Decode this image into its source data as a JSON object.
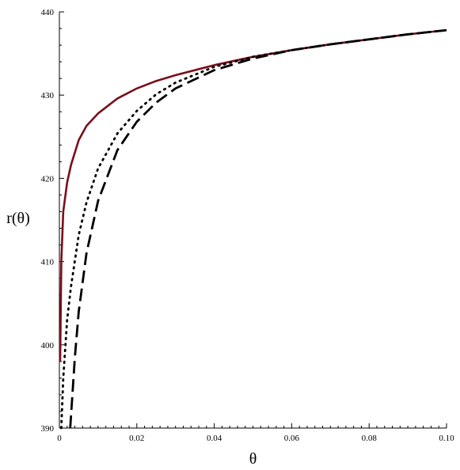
{
  "chart_data": {
    "type": "line",
    "title": "",
    "xlabel": "θ",
    "ylabel": "r(θ)",
    "xlim": [
      0,
      0.1
    ],
    "ylim": [
      390,
      440
    ],
    "x_ticks": [
      0,
      0.02,
      0.04,
      0.06,
      0.08,
      0.1
    ],
    "x_tick_labels": [
      "0",
      "0.02",
      "0.04",
      "0.06",
      "0.08",
      "0.10"
    ],
    "y_ticks": [
      390,
      400,
      410,
      420,
      430,
      440
    ],
    "y_tick_labels": [
      "390",
      "400",
      "410",
      "420",
      "430",
      "440"
    ],
    "grid": false,
    "legend": "none",
    "series": [
      {
        "style": "solid",
        "color": "#7a0f1a",
        "x": [
          0.0002,
          0.0005,
          0.001,
          0.002,
          0.003,
          0.005,
          0.007,
          0.01,
          0.015,
          0.02,
          0.025,
          0.03,
          0.04,
          0.05,
          0.06,
          0.07,
          0.08,
          0.09,
          0.1
        ],
        "y": [
          398,
          410,
          416,
          419.5,
          421.6,
          424.6,
          426.3,
          427.8,
          429.6,
          430.8,
          431.7,
          432.4,
          433.6,
          434.6,
          435.4,
          436.1,
          436.7,
          437.3,
          437.8
        ]
      },
      {
        "style": "dotted",
        "color": "#000000",
        "x": [
          0.0005,
          0.001,
          0.002,
          0.003,
          0.005,
          0.007,
          0.01,
          0.015,
          0.02,
          0.025,
          0.03,
          0.04,
          0.05,
          0.06,
          0.07,
          0.08,
          0.09,
          0.1
        ],
        "y": [
          390,
          396,
          403,
          407,
          413.2,
          417.1,
          421.2,
          425.4,
          428.1,
          430.1,
          431.5,
          433.4,
          434.6,
          435.4,
          436.1,
          436.7,
          437.3,
          437.8
        ]
      },
      {
        "style": "dashed",
        "color": "#000000",
        "x": [
          0.0028,
          0.004,
          0.005,
          0.007,
          0.01,
          0.015,
          0.02,
          0.025,
          0.03,
          0.04,
          0.05,
          0.06,
          0.07,
          0.08,
          0.09,
          0.1
        ],
        "y": [
          390,
          398.5,
          404,
          411,
          417.3,
          423.4,
          426.8,
          429.1,
          430.8,
          433.0,
          434.4,
          435.4,
          436.1,
          436.7,
          437.3,
          437.8
        ]
      }
    ]
  }
}
